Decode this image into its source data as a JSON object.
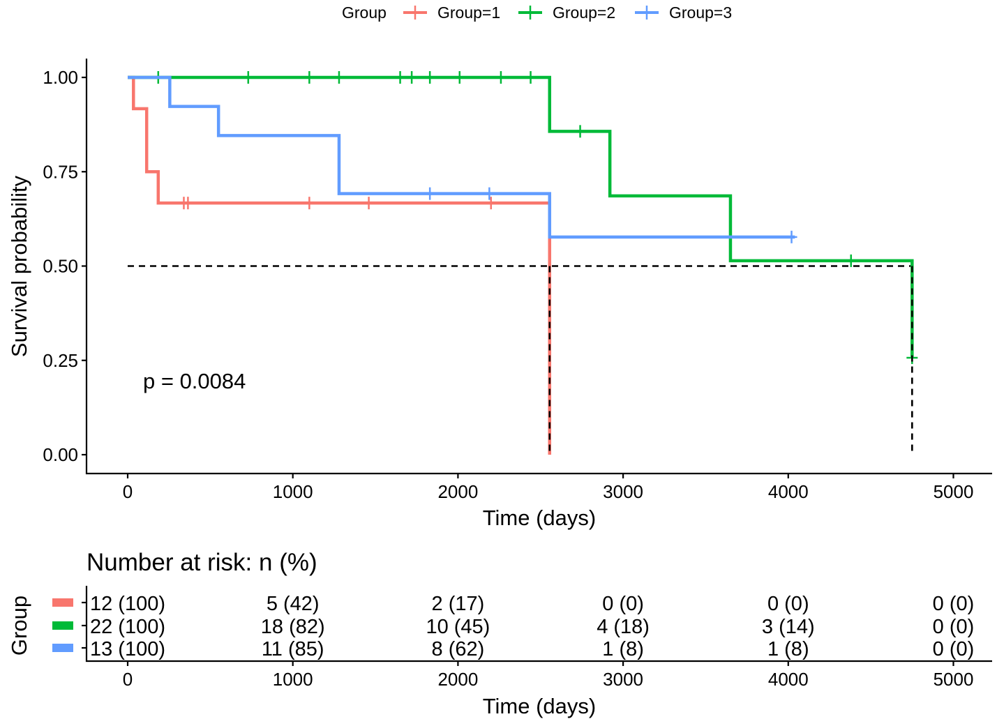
{
  "chart_data": [
    {
      "type": "line",
      "subtype": "kaplan-meier",
      "xlabel": "Time (days)",
      "ylabel": "Survival probability",
      "xlim": [
        -250,
        5250
      ],
      "ylim": [
        0,
        1
      ],
      "xticks": [
        0,
        1000,
        2000,
        3000,
        4000,
        5000
      ],
      "yticks": [
        0,
        0.25,
        0.5,
        0.75,
        1
      ],
      "ytick_labels": [
        "0.00",
        "0.25",
        "0.50",
        "0.75",
        "1.00"
      ],
      "grid": false,
      "legend": {
        "title": "Group",
        "position": "top"
      },
      "annotation": "p = 0.0084",
      "median_line": {
        "y": 0.5,
        "x_end": 4750,
        "drops_at": [
          2555,
          4750
        ]
      },
      "series": [
        {
          "name": "Group=1",
          "color": "#F8766D",
          "steps": [
            [
              0,
              1.0
            ],
            [
              35,
              0.917
            ],
            [
              115,
              0.75
            ],
            [
              185,
              0.667
            ],
            [
              2555,
              0.0
            ]
          ],
          "censored": [
            [
              340,
              0.667
            ],
            [
              365,
              0.667
            ],
            [
              1100,
              0.667
            ],
            [
              1460,
              0.667
            ],
            [
              2200,
              0.667
            ]
          ],
          "end_x": 2555
        },
        {
          "name": "Group=2",
          "color": "#00BA38",
          "steps": [
            [
              0,
              1.0
            ],
            [
              2555,
              0.857
            ],
            [
              2920,
              0.686
            ],
            [
              3650,
              0.514
            ],
            [
              4750,
              0.257
            ]
          ],
          "censored": [
            [
              185,
              1.0
            ],
            [
              730,
              1.0
            ],
            [
              1100,
              1.0
            ],
            [
              1280,
              1.0
            ],
            [
              1650,
              1.0
            ],
            [
              1720,
              1.0
            ],
            [
              1830,
              1.0
            ],
            [
              2010,
              1.0
            ],
            [
              2260,
              1.0
            ],
            [
              2440,
              1.0
            ],
            [
              2740,
              0.857
            ],
            [
              4380,
              0.514
            ],
            [
              4750,
              0.257
            ]
          ],
          "end_x": 4750
        },
        {
          "name": "Group=3",
          "color": "#619CFF",
          "steps": [
            [
              0,
              1.0
            ],
            [
              255,
              0.923
            ],
            [
              550,
              0.846
            ],
            [
              1280,
              0.692
            ],
            [
              2555,
              0.577
            ]
          ],
          "censored": [
            [
              1830,
              0.692
            ],
            [
              2190,
              0.692
            ],
            [
              4020,
              0.577
            ]
          ],
          "end_x": 4040
        }
      ]
    },
    {
      "type": "table",
      "title": "Number at risk: n (%)",
      "ylabel": "Group",
      "xlabel": "Time (days)",
      "xticks": [
        0,
        1000,
        2000,
        3000,
        4000,
        5000
      ],
      "rows": [
        {
          "group": "Group=1",
          "color": "#F8766D",
          "values": [
            "12 (100)",
            "5 (42)",
            "2 (17)",
            "0 (0)",
            "0 (0)",
            "0 (0)"
          ]
        },
        {
          "group": "Group=2",
          "color": "#00BA38",
          "values": [
            "22 (100)",
            "18 (82)",
            "10 (45)",
            "4 (18)",
            "3 (14)",
            "0 (0)"
          ]
        },
        {
          "group": "Group=3",
          "color": "#619CFF",
          "values": [
            "13 (100)",
            "11 (85)",
            "8 (62)",
            "1 (8)",
            "1 (8)",
            "0 (0)"
          ]
        }
      ]
    }
  ]
}
